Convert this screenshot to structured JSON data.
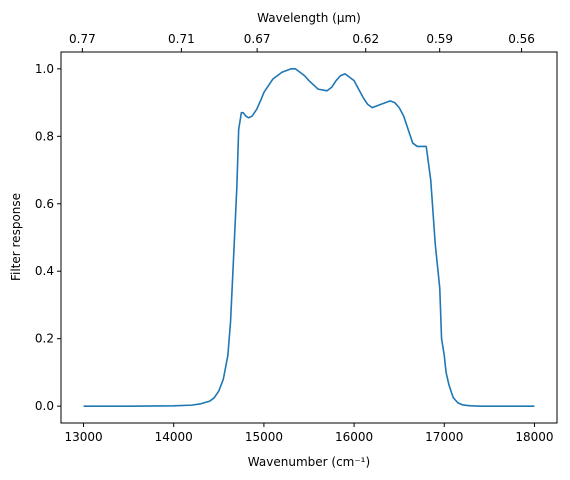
{
  "chart_data": {
    "type": "line",
    "xlabel": "Wavenumber (cm⁻¹)",
    "ylabel": "Filter response",
    "top_xlabel": "Wavelength (μm)",
    "xlim": [
      12750,
      18250
    ],
    "ylim": [
      -0.05,
      1.05
    ],
    "x_ticks": [
      13000,
      14000,
      15000,
      16000,
      17000,
      18000
    ],
    "x_tick_labels": [
      "13000",
      "14000",
      "15000",
      "16000",
      "17000",
      "18000"
    ],
    "y_ticks": [
      0.0,
      0.2,
      0.4,
      0.6,
      0.8,
      1.0
    ],
    "y_tick_labels": [
      "0.0",
      "0.2",
      "0.4",
      "0.6",
      "0.8",
      "1.0"
    ],
    "top_ticks": [
      {
        "label": "0.77",
        "x": 12987
      },
      {
        "label": "0.71",
        "x": 14085
      },
      {
        "label": "0.67",
        "x": 14925
      },
      {
        "label": "0.62",
        "x": 16129
      },
      {
        "label": "0.59",
        "x": 16949
      },
      {
        "label": "0.56",
        "x": 17857
      }
    ],
    "series": [
      {
        "color": "#1f77b4",
        "x": [
          13000,
          13500,
          14000,
          14200,
          14300,
          14400,
          14450,
          14500,
          14550,
          14600,
          14630,
          14660,
          14700,
          14720,
          14750,
          14770,
          14800,
          14830,
          14870,
          14920,
          14970,
          15000,
          15100,
          15200,
          15300,
          15350,
          15400,
          15450,
          15500,
          15600,
          15700,
          15750,
          15800,
          15850,
          15900,
          16000,
          16050,
          16100,
          16150,
          16200,
          16300,
          16400,
          16450,
          16500,
          16550,
          16600,
          16650,
          16700,
          16750,
          16800,
          16850,
          16900,
          16950,
          16970,
          17000,
          17020,
          17050,
          17080,
          17100,
          17150,
          17200,
          17250,
          17300,
          17400,
          17500,
          17600,
          17700,
          17800,
          17900,
          18000
        ],
        "y": [
          0.0,
          0.0,
          0.001,
          0.003,
          0.007,
          0.015,
          0.025,
          0.045,
          0.08,
          0.15,
          0.25,
          0.42,
          0.65,
          0.82,
          0.87,
          0.87,
          0.86,
          0.855,
          0.86,
          0.88,
          0.91,
          0.93,
          0.97,
          0.99,
          1.0,
          1.0,
          0.99,
          0.98,
          0.965,
          0.94,
          0.935,
          0.945,
          0.965,
          0.98,
          0.985,
          0.965,
          0.94,
          0.915,
          0.895,
          0.885,
          0.895,
          0.905,
          0.9,
          0.885,
          0.86,
          0.82,
          0.78,
          0.77,
          0.77,
          0.77,
          0.67,
          0.48,
          0.35,
          0.2,
          0.15,
          0.1,
          0.065,
          0.04,
          0.025,
          0.01,
          0.004,
          0.002,
          0.001,
          0.0,
          0.0,
          0.0,
          0.0,
          0.0,
          0.0,
          0.0
        ]
      }
    ]
  }
}
